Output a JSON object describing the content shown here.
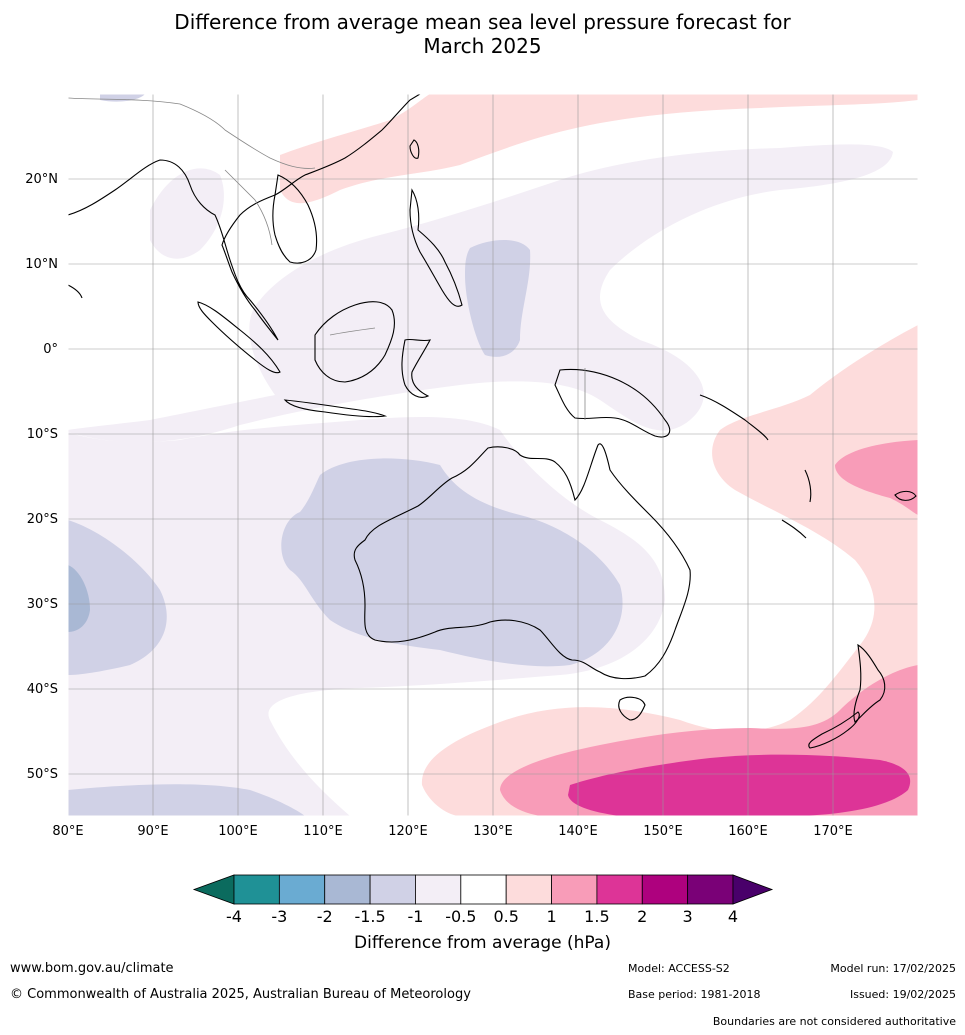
{
  "title": "Difference from average mean sea level pressure forecast for\nMarch 2025",
  "title_line1": "Difference from average mean sea level pressure forecast for",
  "title_line2": "March 2025",
  "map": {
    "lon_labels": [
      "80°E",
      "90°E",
      "100°E",
      "110°E",
      "120°E",
      "130°E",
      "140°E",
      "150°E",
      "160°E",
      "170°E"
    ],
    "lat_labels": [
      "20°N",
      "10°N",
      "0°",
      "10°S",
      "20°S",
      "30°S",
      "40°S",
      "50°S"
    ],
    "colors": {
      "below_-4": "#0b6b5e",
      "-4_-3": "#1f9196",
      "-3_-2": "#6aabd2",
      "-2_-1.5": "#a9b8d4",
      "-1.5_-1": "#d0d1e6",
      "-1_-0.5": "#f3eef6",
      "-0.5_0.5": "#ffffff",
      "0.5_1": "#fddcdc",
      "1_1.5": "#f89cb8",
      "1.5_2": "#dd3497",
      "2_3": "#ae017e",
      "3_4": "#7a0177",
      "above_4": "#49006a"
    }
  },
  "colorbar": {
    "ticks": [
      "-4",
      "-3",
      "-2",
      "-1.5",
      "-1",
      "-0.5",
      "0.5",
      "1",
      "1.5",
      "2",
      "3",
      "4"
    ],
    "colors": [
      "#0b6b5e",
      "#1f9196",
      "#6aabd2",
      "#a9b8d4",
      "#d0d1e6",
      "#f3eef6",
      "#ffffff",
      "#fddcdc",
      "#f89cb8",
      "#dd3497",
      "#ae017e",
      "#7a0177",
      "#49006a"
    ],
    "label": "Difference from average (hPa)"
  },
  "footer": {
    "site_url": "www.bom.gov.au/climate",
    "copyright": "© Commonwealth of Australia 2025, Australian Bureau of Meteorology",
    "model": "Model: ACCESS-S2",
    "base_period": "Base period: 1981-2018",
    "model_run": "Model run: 17/02/2025",
    "issued": "Issued: 19/02/2025",
    "disclaimer": "Boundaries are not considered authoritative"
  }
}
